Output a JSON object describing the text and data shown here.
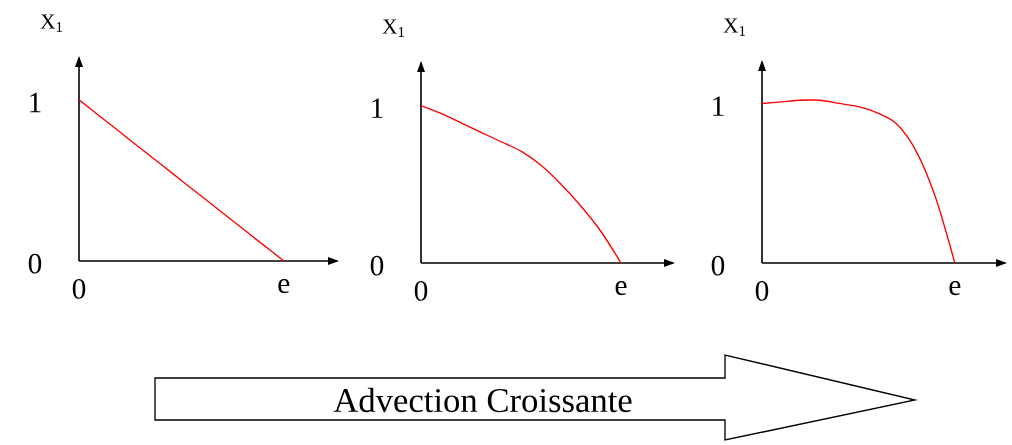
{
  "chart_data": [
    {
      "type": "line",
      "ylabel": "X$_{1}$",
      "categories": [
        "0",
        null,
        null,
        null,
        null,
        null,
        null,
        null,
        null,
        null,
        "e"
      ],
      "values": [
        1,
        0.9,
        0.8,
        0.7,
        0.6,
        0.5,
        0.4,
        0.3,
        0.2,
        0.1,
        0
      ],
      "color": "#ff0000",
      "ylim": [
        0,
        1.26
      ],
      "yticks": [
        0,
        1
      ],
      "grid": false
    },
    {
      "type": "line",
      "ylabel": "X$_{1}$",
      "categories": [
        "0",
        null,
        null,
        null,
        null,
        null,
        null,
        null,
        null,
        null,
        "e"
      ],
      "values": [
        1,
        0.95,
        0.89,
        0.83,
        0.77,
        0.71,
        0.62,
        0.5,
        0.36,
        0.2,
        0
      ],
      "color": "#ff0000",
      "ylim": [
        0,
        1.27
      ],
      "yticks": [
        0,
        1
      ],
      "grid": false,
      "annotations": [
        "Advection Croissante"
      ]
    },
    {
      "type": "line",
      "ylabel": "X$_{1}$",
      "categories": [
        "0",
        null,
        null,
        null,
        null,
        null,
        null,
        null,
        null,
        null,
        "e"
      ],
      "values": [
        1,
        1.01,
        1.02,
        1.02,
        1.0,
        0.98,
        0.94,
        0.87,
        0.7,
        0.41,
        0
      ],
      "color": "#ff0000",
      "ylim": [
        0,
        1.26
      ],
      "yticks": [
        0,
        1
      ],
      "grid": false
    }
  ]
}
